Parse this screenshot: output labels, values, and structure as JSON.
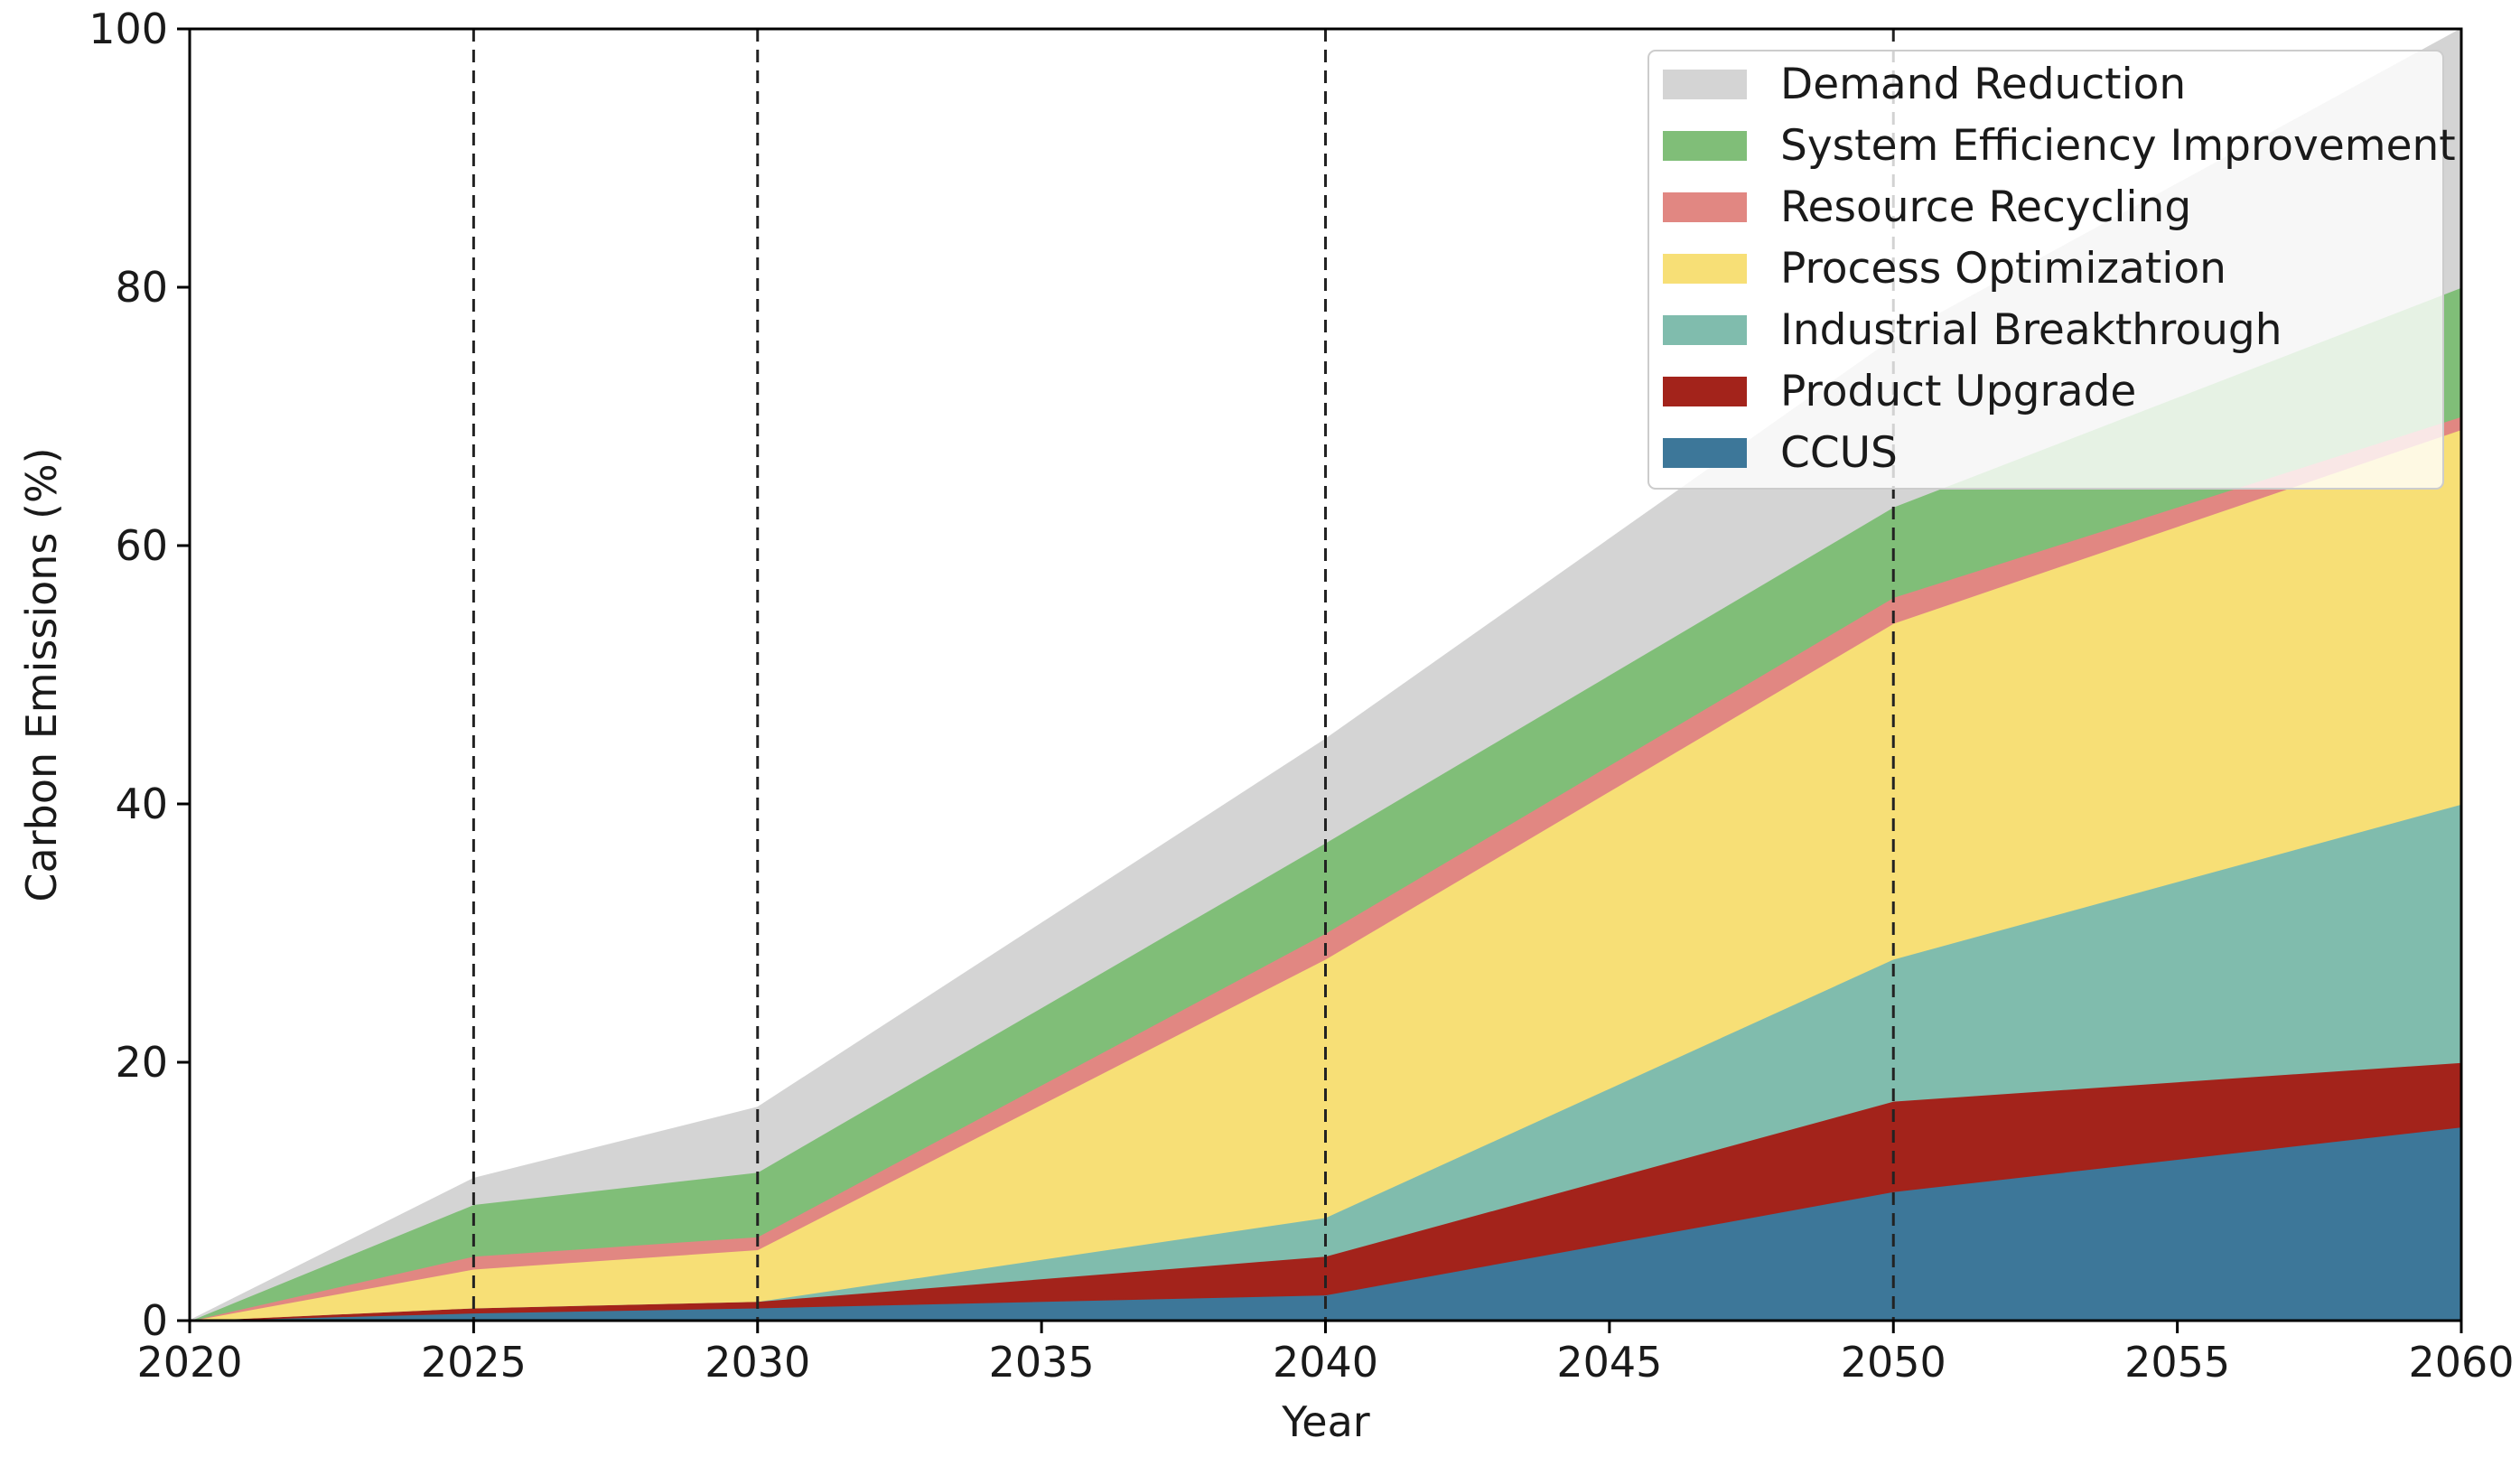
{
  "chart_data": {
    "type": "area",
    "stacked": true,
    "title": "",
    "xlabel": "Year",
    "ylabel": "Carbon Emissions (%)",
    "xlim": [
      2020,
      2060
    ],
    "ylim": [
      0,
      100
    ],
    "xticks": [
      2020,
      2025,
      2030,
      2035,
      2040,
      2045,
      2050,
      2055,
      2060
    ],
    "yticks": [
      0,
      20,
      40,
      60,
      80,
      100
    ],
    "x": [
      2020,
      2025,
      2030,
      2040,
      2050,
      2060
    ],
    "milestones": [
      2025,
      2030,
      2040,
      2050
    ],
    "legend_position": "upper-right",
    "series": [
      {
        "name": "CCUS",
        "color": "#3d7799",
        "values": [
          0,
          0.6,
          1,
          2,
          10,
          15
        ]
      },
      {
        "name": "Product Upgrade",
        "color": "#a3231b",
        "values": [
          0,
          0.4,
          0.5,
          3,
          7,
          5
        ]
      },
      {
        "name": "Industrial Breakthrough",
        "color": "#80bcad",
        "values": [
          0,
          0,
          0,
          3,
          11,
          20
        ]
      },
      {
        "name": "Process Optimization",
        "color": "#f7df76",
        "values": [
          0,
          3,
          4,
          20,
          26,
          29
        ]
      },
      {
        "name": "Resource Recycling",
        "color": "#e18782",
        "values": [
          0,
          1,
          1,
          2,
          2,
          1
        ]
      },
      {
        "name": "System Efficiency Improvement",
        "color": "#80be78",
        "values": [
          0,
          4,
          5,
          7,
          7,
          10
        ]
      },
      {
        "name": "Demand Reduction",
        "color": "#d4d4d4",
        "values": [
          0,
          2,
          5,
          8,
          13,
          20
        ]
      }
    ]
  }
}
